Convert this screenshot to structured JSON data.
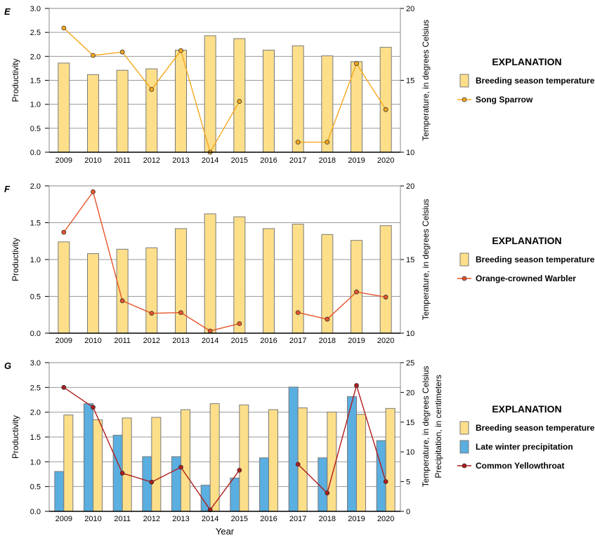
{
  "chart_data": [
    {
      "panel": "E",
      "type": "bar+line",
      "categories": [
        "2009",
        "2010",
        "2011",
        "2012",
        "2013",
        "2014",
        "2015",
        "2016",
        "2017",
        "2018",
        "2019",
        "2020"
      ],
      "ylabel": "Productivity",
      "ylim": [
        0,
        3.0
      ],
      "yticks": [
        "0.0",
        "0.5",
        "1.0",
        "1.5",
        "2.0",
        "2.5",
        "3.0"
      ],
      "y2label": "Temperature, in degrees Celsius",
      "y2lim": [
        10,
        20
      ],
      "y2ticks": [
        "10",
        "15",
        "20"
      ],
      "series": [
        {
          "name": "Breeding season temperature",
          "kind": "bar",
          "axis": "right",
          "color": "#fddf8a",
          "values": [
            16.2,
            15.4,
            15.7,
            15.8,
            17.1,
            18.1,
            17.9,
            17.1,
            17.4,
            16.7,
            16.3,
            17.3
          ]
        },
        {
          "name": "Song Sparrow",
          "kind": "line",
          "axis": "left",
          "color": "#f5a81c",
          "values": [
            2.59,
            2.02,
            2.09,
            1.31,
            2.12,
            0.0,
            1.06,
            null,
            0.21,
            0.21,
            1.85,
            0.89
          ]
        }
      ],
      "legend_title": "EXPLANATION"
    },
    {
      "panel": "F",
      "type": "bar+line",
      "categories": [
        "2009",
        "2010",
        "2011",
        "2012",
        "2013",
        "2014",
        "2015",
        "2016",
        "2017",
        "2018",
        "2019",
        "2020"
      ],
      "ylabel": "Productivity",
      "ylim": [
        0,
        2.0
      ],
      "yticks": [
        "0.0",
        "0.5",
        "1.0",
        "1.5",
        "2.0"
      ],
      "y2label": "Temperature, in degrees Celsius",
      "y2lim": [
        10,
        20
      ],
      "y2ticks": [
        "10",
        "15",
        "20"
      ],
      "series": [
        {
          "name": "Breeding season temperature",
          "kind": "bar",
          "axis": "right",
          "color": "#fddf8a",
          "values": [
            16.2,
            15.4,
            15.7,
            15.8,
            17.1,
            18.1,
            17.9,
            17.1,
            17.4,
            16.7,
            16.3,
            17.3
          ]
        },
        {
          "name": "Orange-crowned Warbler",
          "kind": "line",
          "axis": "left",
          "color": "#e8542a",
          "values": [
            1.37,
            1.92,
            0.44,
            0.27,
            0.28,
            0.03,
            0.13,
            null,
            0.28,
            0.19,
            0.56,
            0.49
          ]
        }
      ],
      "legend_title": "EXPLANATION"
    },
    {
      "panel": "G",
      "type": "bar+line",
      "categories": [
        "2009",
        "2010",
        "2011",
        "2012",
        "2013",
        "2014",
        "2015",
        "2016",
        "2017",
        "2018",
        "2019",
        "2020"
      ],
      "xlabel": "Year",
      "ylabel": "Productivity",
      "ylim": [
        0,
        3.0
      ],
      "yticks": [
        "0.0",
        "0.5",
        "1.0",
        "1.5",
        "2.0",
        "2.5",
        "3.0"
      ],
      "y2label": "Temperature, in degrees Celsius",
      "y2label_2": "Precipitation, in centimeters",
      "y2lim": [
        0,
        25
      ],
      "y2ticks": [
        "0",
        "5",
        "10",
        "15",
        "20",
        "25"
      ],
      "series": [
        {
          "name": "Breeding season temperature",
          "kind": "bar",
          "axis": "right",
          "color": "#fddf8a",
          "values": [
            16.2,
            15.4,
            15.7,
            15.8,
            17.1,
            18.1,
            17.9,
            17.1,
            17.4,
            16.7,
            16.3,
            17.3
          ]
        },
        {
          "name": "Late winter precipitation",
          "kind": "bar",
          "axis": "right",
          "color": "#5aaee0",
          "values": [
            6.7,
            18.1,
            12.8,
            9.2,
            9.2,
            4.4,
            5.6,
            9.0,
            20.9,
            9.0,
            19.3,
            11.9
          ]
        },
        {
          "name": "Common Yellowthroat",
          "kind": "line",
          "axis": "left",
          "color": "#b01c1c",
          "values": [
            2.5,
            2.1,
            0.77,
            0.59,
            0.89,
            0.03,
            0.83,
            null,
            0.95,
            0.37,
            2.54,
            0.6
          ]
        }
      ],
      "legend_title": "EXPLANATION"
    }
  ]
}
